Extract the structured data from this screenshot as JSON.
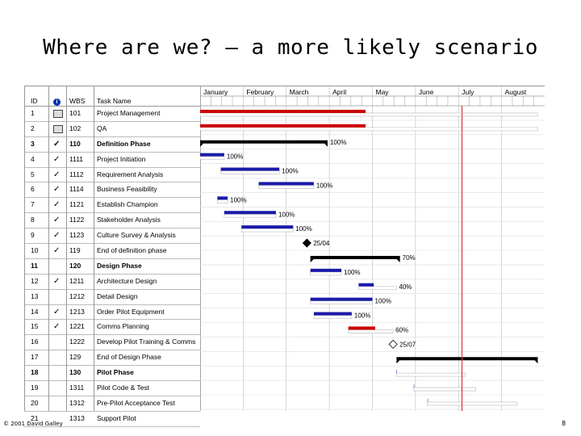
{
  "title": "Where are we? – a more likely scenario",
  "footer": {
    "copyright": "© 2001 David Galley",
    "page": "8"
  },
  "table": {
    "headers": {
      "id": "ID",
      "wbs": "WBS",
      "name": "Task Name"
    },
    "rows": [
      {
        "id": "1",
        "ind": "note",
        "wbs": "101",
        "name": "Project Management",
        "bold": false
      },
      {
        "id": "2",
        "ind": "note",
        "wbs": "102",
        "name": "QA",
        "bold": false
      },
      {
        "id": "3",
        "ind": "check",
        "wbs": "110",
        "name": "Definition Phase",
        "bold": true
      },
      {
        "id": "4",
        "ind": "check",
        "wbs": "1111",
        "name": "Project Initiation",
        "bold": false
      },
      {
        "id": "5",
        "ind": "check",
        "wbs": "1112",
        "name": "Requirement Analysis",
        "bold": false
      },
      {
        "id": "6",
        "ind": "check",
        "wbs": "1114",
        "name": "Business Feasibility",
        "bold": false
      },
      {
        "id": "7",
        "ind": "check",
        "wbs": "1121",
        "name": "Establish Champion",
        "bold": false
      },
      {
        "id": "8",
        "ind": "check",
        "wbs": "1122",
        "name": "Stakeholder Analysis",
        "bold": false
      },
      {
        "id": "9",
        "ind": "check",
        "wbs": "1123",
        "name": "Culture Survey & Analysis",
        "bold": false
      },
      {
        "id": "10",
        "ind": "check",
        "wbs": "119",
        "name": "End of definition phase",
        "bold": false
      },
      {
        "id": "11",
        "ind": "",
        "wbs": "120",
        "name": "Design Phase",
        "bold": true
      },
      {
        "id": "12",
        "ind": "check",
        "wbs": "1211",
        "name": "Architecture Design",
        "bold": false
      },
      {
        "id": "13",
        "ind": "",
        "wbs": "1212",
        "name": "Detail Design",
        "bold": false
      },
      {
        "id": "14",
        "ind": "check",
        "wbs": "1213",
        "name": "Order Pilot Equipment",
        "bold": false
      },
      {
        "id": "15",
        "ind": "check",
        "wbs": "1221",
        "name": "Comms Planning",
        "bold": false
      },
      {
        "id": "16",
        "ind": "",
        "wbs": "1222",
        "name": "Develop Pilot Training & Comms",
        "bold": false
      },
      {
        "id": "17",
        "ind": "",
        "wbs": "129",
        "name": "End of Design Phase",
        "bold": false
      },
      {
        "id": "18",
        "ind": "",
        "wbs": "130",
        "name": "Pilot Phase",
        "bold": true
      },
      {
        "id": "19",
        "ind": "",
        "wbs": "1311",
        "name": "Pilot Code & Test",
        "bold": false
      },
      {
        "id": "20",
        "ind": "",
        "wbs": "1312",
        "name": "Pre-Pilot Acceptance Test",
        "bold": false
      },
      {
        "id": "21",
        "ind": "",
        "wbs": "1313",
        "name": "Support Pilot",
        "bold": false
      }
    ]
  },
  "months": [
    "January",
    "February",
    "March",
    "April",
    "May",
    "June",
    "July",
    "August"
  ],
  "colors": {
    "baseline": "#999999",
    "progress": "#1a1aa8",
    "critical": "#cc0000",
    "summary": "#000000",
    "today_line": "#dd3333"
  },
  "gantt": {
    "tasks": [
      {
        "row": 1,
        "start": 0.0,
        "end": 0.98,
        "type": "critical",
        "progress": 0.49,
        "label": ""
      },
      {
        "row": 2,
        "start": 0.0,
        "end": 0.98,
        "type": "critical",
        "progress": 0.49,
        "label": ""
      },
      {
        "row": 3,
        "start": 0.0,
        "end": 0.37,
        "type": "summary",
        "progress": 1.0,
        "label": "100%"
      },
      {
        "row": 4,
        "start": 0.0,
        "end": 0.07,
        "type": "task",
        "progress": 1.0,
        "label": "100%"
      },
      {
        "row": 5,
        "start": 0.06,
        "end": 0.23,
        "type": "task",
        "progress": 1.0,
        "label": "100%"
      },
      {
        "row": 6,
        "start": 0.17,
        "end": 0.33,
        "type": "task",
        "progress": 1.0,
        "label": "100%"
      },
      {
        "row": 7,
        "start": 0.05,
        "end": 0.08,
        "type": "task",
        "progress": 1.0,
        "label": "100%"
      },
      {
        "row": 8,
        "start": 0.07,
        "end": 0.22,
        "type": "task",
        "progress": 1.0,
        "label": "100%"
      },
      {
        "row": 9,
        "start": 0.12,
        "end": 0.27,
        "type": "task",
        "progress": 1.0,
        "label": "100%"
      },
      {
        "row": 10,
        "start": 0.31,
        "end": 0.31,
        "type": "milestone",
        "progress": 1.0,
        "label": "25/04"
      },
      {
        "row": 11,
        "start": 0.32,
        "end": 0.58,
        "type": "summary",
        "progress": 0.7,
        "label": "70%"
      },
      {
        "row": 12,
        "start": 0.32,
        "end": 0.41,
        "type": "task",
        "progress": 1.0,
        "label": "100%"
      },
      {
        "row": 13,
        "start": 0.46,
        "end": 0.57,
        "type": "task",
        "progress": 0.4,
        "label": "40%"
      },
      {
        "row": 14,
        "start": 0.32,
        "end": 0.5,
        "type": "task",
        "progress": 1.0,
        "label": "100%"
      },
      {
        "row": 15,
        "start": 0.33,
        "end": 0.44,
        "type": "task",
        "progress": 1.0,
        "label": "100%"
      },
      {
        "row": 16,
        "start": 0.43,
        "end": 0.56,
        "type": "critical",
        "progress": 0.6,
        "label": "60%"
      },
      {
        "row": 17,
        "start": 0.56,
        "end": 0.56,
        "type": "milestone",
        "progress": 0,
        "label": "25/07"
      },
      {
        "row": 18,
        "start": 0.57,
        "end": 0.98,
        "type": "summary",
        "progress": 0,
        "label": ""
      },
      {
        "row": 19,
        "start": 0.57,
        "end": 0.77,
        "type": "task",
        "progress": 0,
        "label": ""
      },
      {
        "row": 20,
        "start": 0.62,
        "end": 0.8,
        "type": "task",
        "progress": 0,
        "label": ""
      },
      {
        "row": 21,
        "start": 0.66,
        "end": 0.92,
        "type": "task",
        "progress": 0,
        "label": ""
      }
    ],
    "today": 0.76
  }
}
